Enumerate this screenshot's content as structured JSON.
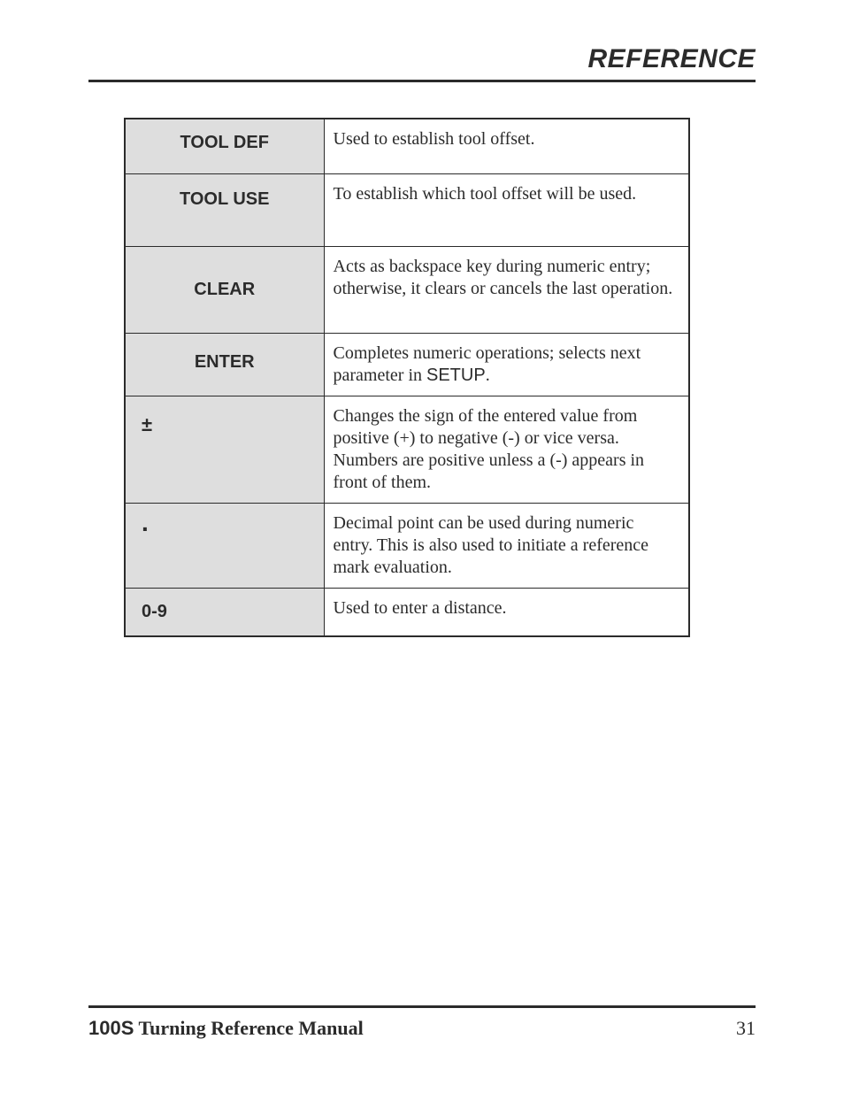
{
  "header": {
    "title": "REFERENCE"
  },
  "table": {
    "rows": [
      {
        "key": "TOOL DEF",
        "key_align": "center",
        "row_class": "row-tooldef",
        "desc": "Used to establish tool offset."
      },
      {
        "key": "TOOL USE",
        "key_align": "center",
        "row_class": "row-tooluse",
        "desc": "To establish which tool offset  will be used."
      },
      {
        "key": "CLEAR",
        "key_align": "center",
        "row_class": "row-clear",
        "desc": "Acts as backspace key during numeric entry; otherwise, it clears or cancels the last operation."
      },
      {
        "key": "ENTER",
        "key_align": "center",
        "row_class": "row-enter",
        "desc_pre": "Completes numeric operations; selects next parameter in ",
        "desc_setup": "SETUP",
        "desc_post": "."
      },
      {
        "key": "±",
        "key_align": "left",
        "row_class": "row-pm",
        "desc": "Changes the sign of the entered value from positive (+) to negative (-) or vice versa. Numbers are positive unless a (-) appears in front of them."
      },
      {
        "key": ".",
        "key_align": "left",
        "row_class": "row-dot",
        "desc": "Decimal point can be used during numeric entry. This is also used to initiate a reference mark evaluation."
      },
      {
        "key": "0-9",
        "key_align": "left",
        "row_class": "row-09",
        "desc": "Used to enter a distance."
      }
    ]
  },
  "footer": {
    "product": "100S",
    "title_rest": " Turning Reference Manual",
    "page_number": "31"
  },
  "colors": {
    "text": "#2b2b2b",
    "rule": "#2b2b2b",
    "key_bg": "#dedede",
    "page_bg": "#ffffff"
  }
}
